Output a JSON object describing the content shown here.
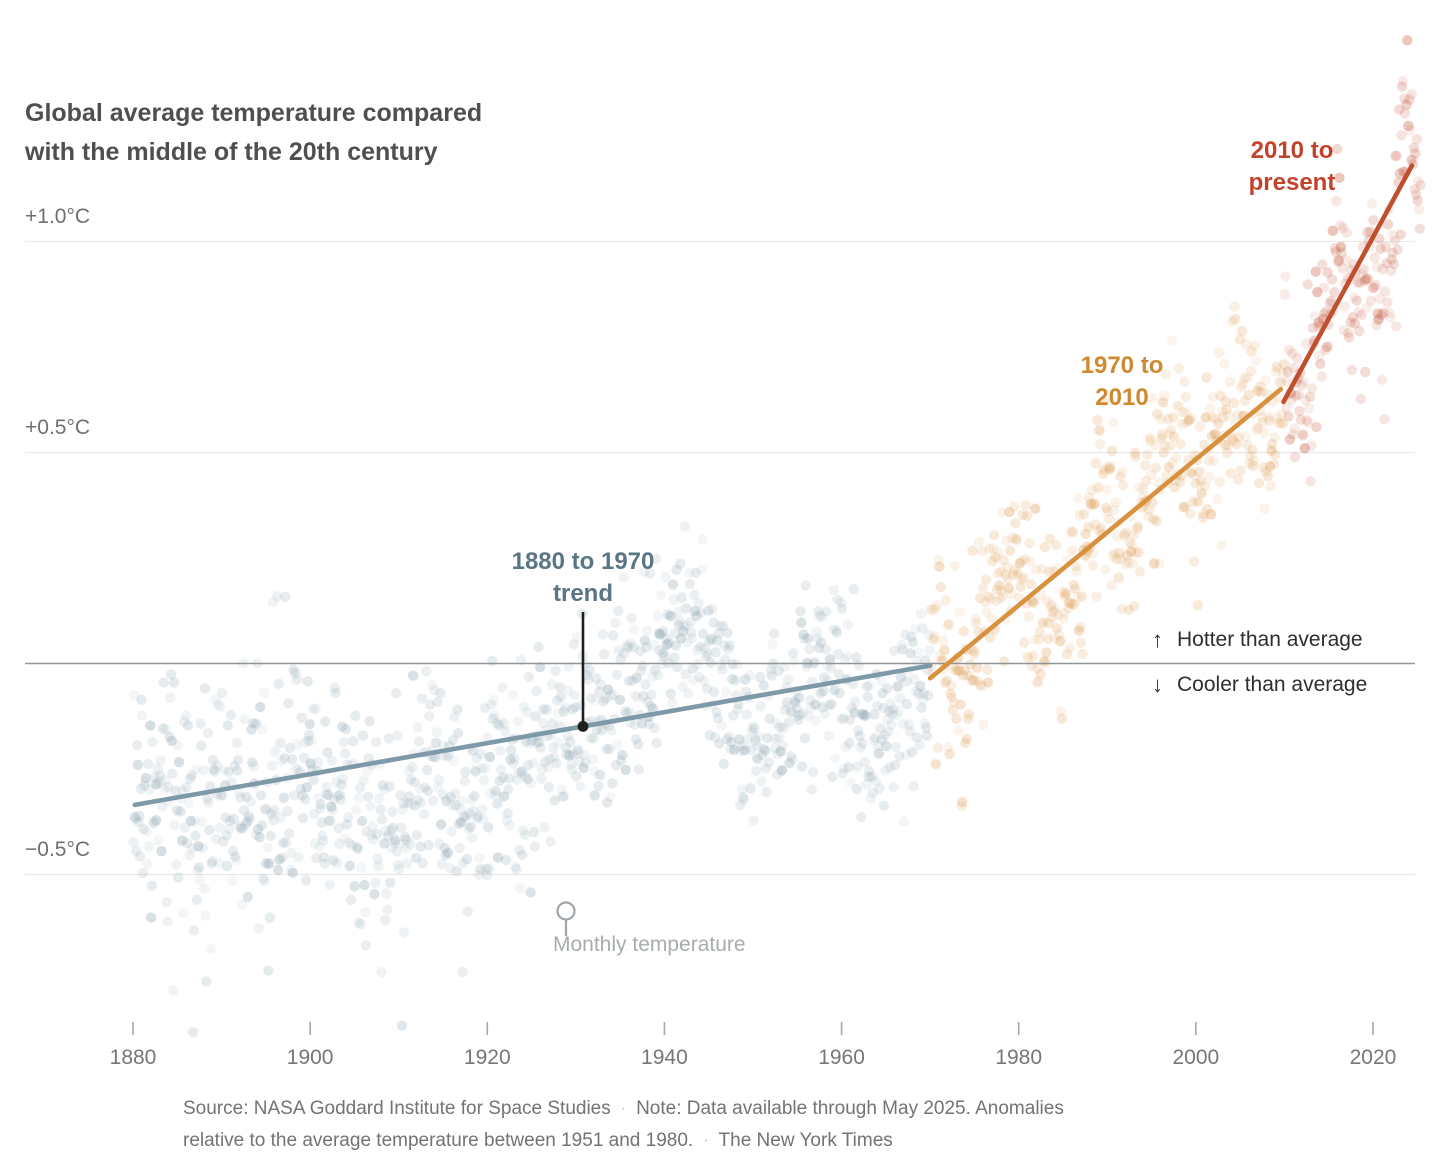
{
  "title": {
    "line1": "Global average temperature compared",
    "line2": "with the middle of the 20th century",
    "full": "Global average temperature compared with the middle of the 20th century"
  },
  "chart_data": {
    "type": "scatter",
    "title": "Global average temperature compared with the middle of the 20th century",
    "x": {
      "min": 1878.5,
      "max": 2026,
      "ticks": [
        1880,
        1900,
        1920,
        1940,
        1960,
        1980,
        2000,
        2020
      ]
    },
    "y": {
      "unit": "°C anomaly vs 1951-1980 mean",
      "range": [
        -0.9,
        1.55
      ],
      "zero_line": 0,
      "ticks": [
        {
          "label": "+1.0°C",
          "value": 1.0
        },
        {
          "label": "+0.5°C",
          "value": 0.5
        },
        {
          "label": "−0.5°C",
          "value": -0.5
        }
      ]
    },
    "grid": "horizontal-only",
    "series": {
      "monthly_points": {
        "label": "Monthly temperature",
        "start": "1880-01",
        "end": "2025-05",
        "count": 1745,
        "baseline_anchors": [
          [
            1880,
            -0.28
          ],
          [
            1884,
            -0.33
          ],
          [
            1890,
            -0.36
          ],
          [
            1895,
            -0.3
          ],
          [
            1900,
            -0.22
          ],
          [
            1904,
            -0.4
          ],
          [
            1910,
            -0.42
          ],
          [
            1914,
            -0.22
          ],
          [
            1917,
            -0.4
          ],
          [
            1920,
            -0.26
          ],
          [
            1925,
            -0.22
          ],
          [
            1930,
            -0.14
          ],
          [
            1934,
            -0.12
          ],
          [
            1938,
            -0.02
          ],
          [
            1941,
            0.05
          ],
          [
            1944,
            0.08
          ],
          [
            1947,
            -0.08
          ],
          [
            1950,
            -0.18
          ],
          [
            1954,
            -0.12
          ],
          [
            1957,
            0.02
          ],
          [
            1960,
            -0.04
          ],
          [
            1964,
            -0.2
          ],
          [
            1968,
            -0.08
          ],
          [
            1970,
            0.02
          ],
          [
            1972,
            -0.02
          ],
          [
            1974,
            -0.1
          ],
          [
            1977,
            0.14
          ],
          [
            1980,
            0.25
          ],
          [
            1982,
            0.1
          ],
          [
            1985,
            0.1
          ],
          [
            1988,
            0.32
          ],
          [
            1990,
            0.42
          ],
          [
            1992,
            0.22
          ],
          [
            1995,
            0.44
          ],
          [
            1998,
            0.6
          ],
          [
            2000,
            0.4
          ],
          [
            2002,
            0.55
          ],
          [
            2005,
            0.66
          ],
          [
            2008,
            0.52
          ],
          [
            2010,
            0.7
          ],
          [
            2012,
            0.6
          ],
          [
            2014,
            0.73
          ],
          [
            2016,
            0.98
          ],
          [
            2018,
            0.83
          ],
          [
            2020,
            1.0
          ],
          [
            2021,
            0.85
          ],
          [
            2022,
            0.9
          ],
          [
            2023,
            1.15
          ],
          [
            2024,
            1.28
          ],
          [
            2025.4,
            1.1
          ]
        ],
        "noise_sigma_by_year": [
          [
            1900,
            0.16
          ],
          [
            1920,
            0.14
          ],
          [
            1950,
            0.12
          ],
          [
            1980,
            0.11
          ],
          [
            2026,
            0.1
          ]
        ],
        "period_colors": [
          {
            "period": "1880-1969",
            "color": "#8fa7b2"
          },
          {
            "period": "1970-2009",
            "color": "#dd9c52"
          },
          {
            "period": "2010-2025",
            "color": "#c75b40"
          }
        ]
      },
      "trends": [
        {
          "name": "1880 to 1970 trend",
          "color": "#7e99a7",
          "x": [
            1880.2,
            1970
          ],
          "y": [
            -0.335,
            -0.005
          ]
        },
        {
          "name": "1970 to 2010",
          "color": "#d8923f",
          "x": [
            1970,
            2009.6
          ],
          "y": [
            -0.035,
            0.65
          ]
        },
        {
          "name": "2010 to present",
          "color": "#c04f2e",
          "x": [
            2009.9,
            2024.4
          ],
          "y": [
            0.62,
            1.18
          ]
        }
      ]
    },
    "annotations": {
      "trend_slate": {
        "label": "1880 to 1970 trend",
        "lines": [
          "1880 to 1970",
          "trend"
        ],
        "color": "#5a7585"
      },
      "trend_orange": {
        "label": "1970 to 2010",
        "lines": [
          "1970 to",
          "2010"
        ],
        "color": "#d0892f"
      },
      "trend_red": {
        "label": "2010 to present",
        "lines": [
          "2010 to",
          "present"
        ],
        "color": "#c3432a"
      },
      "hotter": {
        "arrow": "↑",
        "text": "Hotter than average"
      },
      "cooler": {
        "arrow": "↓",
        "text": "Cooler than average"
      },
      "monthly": {
        "text": "Monthly temperature"
      }
    },
    "legend_position": "annotations-inline"
  },
  "footer": {
    "separator": "·",
    "line1a": "Source: NASA Goddard Institute for Space Studies",
    "line1b": "Note: Data available through May 2025. Anomalies",
    "line2a": "relative to the average temperature between 1951 and 1980.",
    "line2b": "The New York Times"
  },
  "colors": {
    "title_text": "#4f4f4f",
    "gridline": "#e8e8e8",
    "zero_line": "#909496",
    "tick": "#a8a8a8",
    "tick_label": "#767676",
    "y_label": "#6f6f6f",
    "footer_text": "#737373",
    "leader": "#1f1f1f",
    "pin": "#9fa6ab",
    "background": "#ffffff"
  }
}
